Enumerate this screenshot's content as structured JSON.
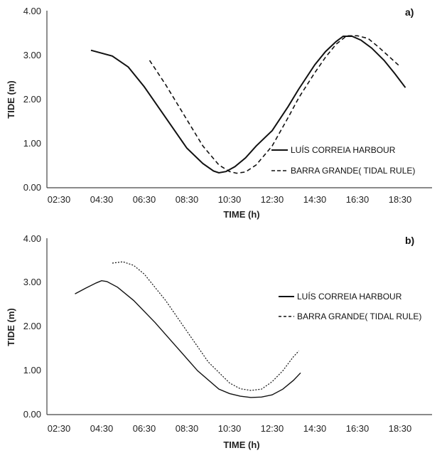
{
  "chart_data": [
    {
      "panel_label": "a)",
      "type": "line",
      "xlabel": "TIME (h)",
      "ylabel": "TIDE (m)",
      "x_ticks": [
        "02:30",
        "04:30",
        "06:30",
        "08:30",
        "10:30",
        "12:30",
        "14:30",
        "16:30",
        "18:30"
      ],
      "y_ticks": [
        "0.00",
        "1.00",
        "2.00",
        "3.00",
        "4.00"
      ],
      "xlim": [
        "02:30",
        "20:30"
      ],
      "ylim": [
        0,
        4
      ],
      "series": [
        {
          "name": "LUÍS CORREIA HARBOUR",
          "style": "solid",
          "points": [
            [
              "04:00",
              3.13
            ],
            [
              "05:00",
              3.0
            ],
            [
              "05:45",
              2.75
            ],
            [
              "06:30",
              2.3
            ],
            [
              "07:30",
              1.6
            ],
            [
              "08:30",
              0.9
            ],
            [
              "09:15",
              0.55
            ],
            [
              "09:45",
              0.38
            ],
            [
              "10:00",
              0.34
            ],
            [
              "10:20",
              0.37
            ],
            [
              "10:45",
              0.48
            ],
            [
              "11:15",
              0.68
            ],
            [
              "11:45",
              0.95
            ],
            [
              "12:30",
              1.3
            ],
            [
              "13:15",
              1.85
            ],
            [
              "13:45",
              2.25
            ],
            [
              "14:30",
              2.8
            ],
            [
              "15:00",
              3.1
            ],
            [
              "15:30",
              3.33
            ],
            [
              "15:50",
              3.45
            ],
            [
              "16:15",
              3.45
            ],
            [
              "16:40",
              3.36
            ],
            [
              "17:10",
              3.18
            ],
            [
              "17:45",
              2.9
            ],
            [
              "18:15",
              2.6
            ],
            [
              "18:45",
              2.28
            ]
          ]
        },
        {
          "name": "BARRA GRANDE( TIDAL RULE)",
          "style": "dashed",
          "points": [
            [
              "06:45",
              2.9
            ],
            [
              "07:30",
              2.35
            ],
            [
              "08:30",
              1.55
            ],
            [
              "09:15",
              0.95
            ],
            [
              "10:00",
              0.52
            ],
            [
              "10:30",
              0.37
            ],
            [
              "10:50",
              0.33
            ],
            [
              "11:15",
              0.36
            ],
            [
              "11:45",
              0.52
            ],
            [
              "12:30",
              0.95
            ],
            [
              "13:15",
              1.6
            ],
            [
              "13:45",
              2.05
            ],
            [
              "14:30",
              2.62
            ],
            [
              "15:00",
              2.97
            ],
            [
              "15:30",
              3.27
            ],
            [
              "16:00",
              3.46
            ],
            [
              "16:30",
              3.46
            ],
            [
              "17:00",
              3.4
            ],
            [
              "17:30",
              3.2
            ],
            [
              "18:00",
              2.98
            ],
            [
              "18:30",
              2.76
            ]
          ]
        }
      ]
    },
    {
      "panel_label": "b)",
      "type": "line",
      "xlabel": "TIME (h)",
      "ylabel": "TIDE (m)",
      "x_ticks": [
        "02:30",
        "04:30",
        "06:30",
        "08:30",
        "10:30",
        "12:30",
        "14:30",
        "16:30",
        "18:30"
      ],
      "y_ticks": [
        "0.00",
        "1.00",
        "2.00",
        "3.00",
        "4.00"
      ],
      "xlim": [
        "02:30",
        "20:30"
      ],
      "ylim": [
        0,
        4
      ],
      "series": [
        {
          "name": "LUÍS CORREIA HARBOUR",
          "style": "solid",
          "points": [
            [
              "03:15",
              2.75
            ],
            [
              "03:45",
              2.88
            ],
            [
              "04:15",
              3.0
            ],
            [
              "04:30",
              3.05
            ],
            [
              "04:45",
              3.03
            ],
            [
              "05:15",
              2.9
            ],
            [
              "06:00",
              2.6
            ],
            [
              "07:00",
              2.1
            ],
            [
              "08:00",
              1.55
            ],
            [
              "09:00",
              1.0
            ],
            [
              "10:00",
              0.58
            ],
            [
              "10:30",
              0.48
            ],
            [
              "11:00",
              0.42
            ],
            [
              "11:30",
              0.39
            ],
            [
              "12:00",
              0.4
            ],
            [
              "12:30",
              0.45
            ],
            [
              "13:00",
              0.58
            ],
            [
              "13:30",
              0.78
            ],
            [
              "13:50",
              0.95
            ]
          ]
        },
        {
          "name": "BARRA GRANDE( TIDAL RULE)",
          "style": "dotted",
          "points": [
            [
              "05:00",
              3.45
            ],
            [
              "05:30",
              3.48
            ],
            [
              "06:00",
              3.4
            ],
            [
              "06:30",
              3.2
            ],
            [
              "07:30",
              2.6
            ],
            [
              "08:30",
              1.9
            ],
            [
              "09:30",
              1.2
            ],
            [
              "10:30",
              0.72
            ],
            [
              "11:00",
              0.59
            ],
            [
              "11:30",
              0.55
            ],
            [
              "12:00",
              0.58
            ],
            [
              "12:30",
              0.75
            ],
            [
              "13:00",
              1.0
            ],
            [
              "13:30",
              1.32
            ],
            [
              "13:45",
              1.45
            ]
          ]
        }
      ]
    }
  ]
}
